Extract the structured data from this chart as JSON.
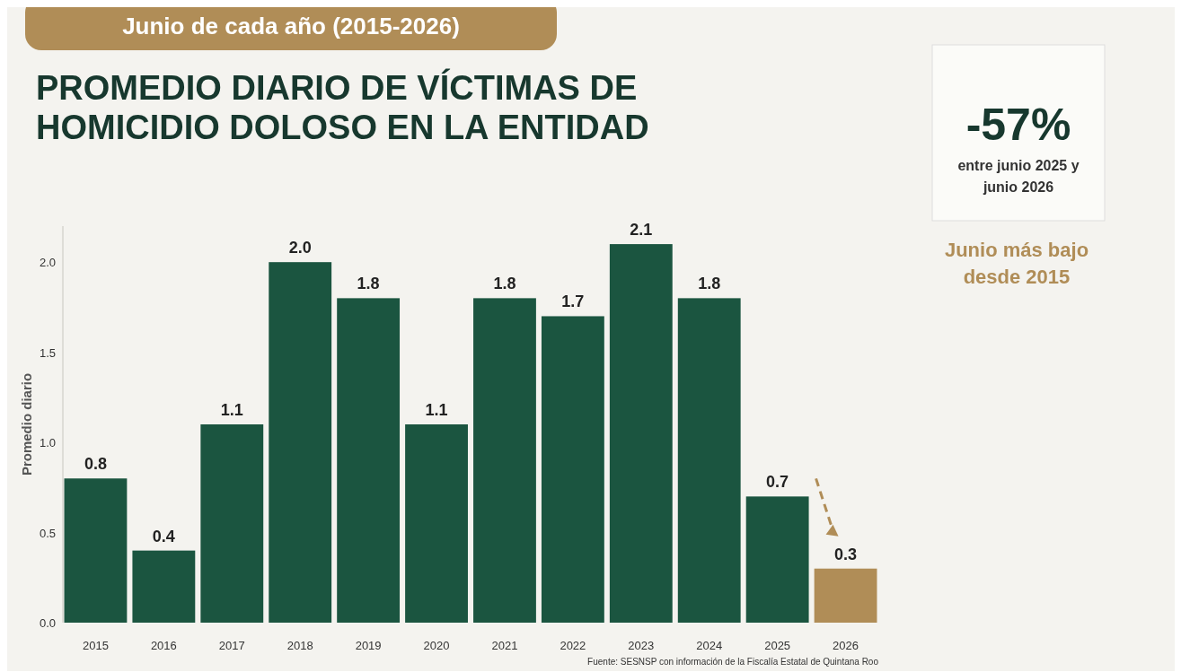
{
  "chart_data": {
    "type": "bar",
    "title": "PROMEDIO DIARIO DE VÍCTIMAS DE HOMICIDIO DOLOSO EN LA ENTIDAD",
    "subtitle": "Junio de cada año (2015-2026)",
    "ylabel": "Promedio diario",
    "categories": [
      "2015",
      "2016",
      "2017",
      "2018",
      "2019",
      "2020",
      "2021",
      "2022",
      "2023",
      "2024",
      "2025",
      "2026"
    ],
    "values": [
      0.8,
      0.4,
      1.1,
      2.0,
      1.8,
      1.1,
      1.8,
      1.7,
      2.1,
      1.8,
      0.7,
      0.3
    ],
    "value_labels": [
      "0.8",
      "0.4",
      "1.1",
      "2.0",
      "1.8",
      "1.1",
      "1.8",
      "1.7",
      "2.1",
      "1.8",
      "0.7",
      "0.3"
    ],
    "colors": [
      "#1b5540",
      "#1b5540",
      "#1b5540",
      "#1b5540",
      "#1b5540",
      "#1b5540",
      "#1b5540",
      "#1b5540",
      "#1b5540",
      "#1b5540",
      "#1b5540",
      "#b08d57"
    ],
    "ylim": [
      0,
      2.2
    ],
    "yticks": [
      {
        "value": 0,
        "label": "0.0"
      },
      {
        "value": 0.5,
        "label": "0.5"
      },
      {
        "value": 1,
        "label": "1.0"
      },
      {
        "value": 1.5,
        "label": "1.5"
      },
      {
        "value": 2,
        "label": "2.0"
      }
    ],
    "grid": false,
    "annotations": [
      "-57%",
      "entre junio 2025 y junio 2026",
      "Junio más bajo desde 2015",
      "Fuente: SESNSP con información de la Fiscalía Estatal de Quintana Roo"
    ]
  }
}
